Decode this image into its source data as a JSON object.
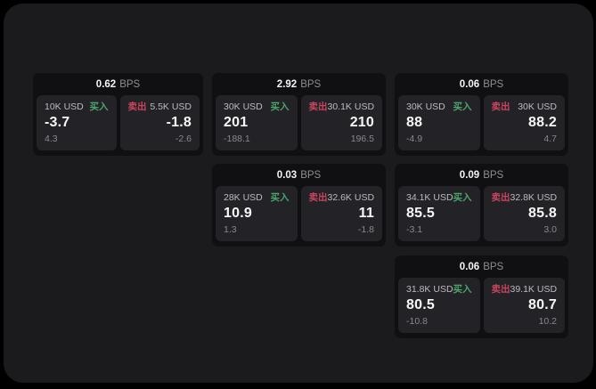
{
  "window": {
    "background": "#000000",
    "panel_background": "#1b1b1d",
    "card_background": "#101012",
    "subcard_background": "#232327"
  },
  "colors": {
    "buy_green": "#4ba56c",
    "sell_red": "#c9455e",
    "primary_text": "#f5f5f6",
    "muted_text": "#8e8e93"
  },
  "labels": {
    "bps": "BPS",
    "buy": "买入",
    "sell": "卖出"
  },
  "cards": [
    {
      "col": 1,
      "row": 1,
      "bps": "0.62",
      "buy": {
        "amount": "10K USD",
        "value": "-3.7",
        "sub": "4.3"
      },
      "sell": {
        "amount": "5.5K USD",
        "value": "-1.8",
        "sub": "-2.6"
      }
    },
    {
      "col": 2,
      "row": 1,
      "bps": "2.92",
      "buy": {
        "amount": "30K USD",
        "value": "201",
        "sub": "-188.1"
      },
      "sell": {
        "amount": "30.1K USD",
        "value": "210",
        "sub": "196.5"
      }
    },
    {
      "col": 3,
      "row": 1,
      "bps": "0.06",
      "buy": {
        "amount": "30K USD",
        "value": "88",
        "sub": "-4.9"
      },
      "sell": {
        "amount": "30K USD",
        "value": "88.2",
        "sub": "4.7"
      }
    },
    {
      "col": 2,
      "row": 2,
      "bps": "0.03",
      "buy": {
        "amount": "28K USD",
        "value": "10.9",
        "sub": "1.3"
      },
      "sell": {
        "amount": "32.6K USD",
        "value": "11",
        "sub": "-1.8"
      }
    },
    {
      "col": 3,
      "row": 2,
      "bps": "0.09",
      "buy": {
        "amount": "34.1K USD",
        "value": "85.5",
        "sub": "-3.1"
      },
      "sell": {
        "amount": "32.8K USD",
        "value": "85.8",
        "sub": "3.0"
      }
    },
    {
      "col": 3,
      "row": 3,
      "bps": "0.06",
      "buy": {
        "amount": "31.8K USD",
        "value": "80.5",
        "sub": "-10.8"
      },
      "sell": {
        "amount": "39.1K USD",
        "value": "80.7",
        "sub": "10.2"
      }
    }
  ]
}
